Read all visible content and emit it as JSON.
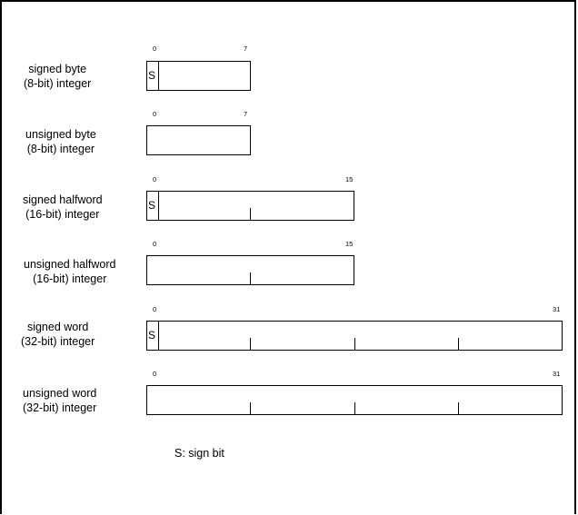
{
  "rows": [
    {
      "label_line1": "signed byte",
      "label_line2": "(8-bit) integer",
      "start_bit": "0",
      "end_bit": "7",
      "sign": "S"
    },
    {
      "label_line1": "unsigned byte",
      "label_line2": "(8-bit) integer",
      "start_bit": "0",
      "end_bit": "7"
    },
    {
      "label_line1": "signed halfword",
      "label_line2": "(16-bit) integer",
      "start_bit": "0",
      "end_bit": "15",
      "sign": "S"
    },
    {
      "label_line1": "unsigned halfword",
      "label_line2": "(16-bit) integer",
      "start_bit": "0",
      "end_bit": "15"
    },
    {
      "label_line1": "signed word",
      "label_line2": "(32-bit) integer",
      "start_bit": "0",
      "end_bit": "31",
      "sign": "S"
    },
    {
      "label_line1": "unsigned word",
      "label_line2": "(32-bit) integer",
      "start_bit": "0",
      "end_bit": "31"
    }
  ],
  "legend": "S: sign bit"
}
